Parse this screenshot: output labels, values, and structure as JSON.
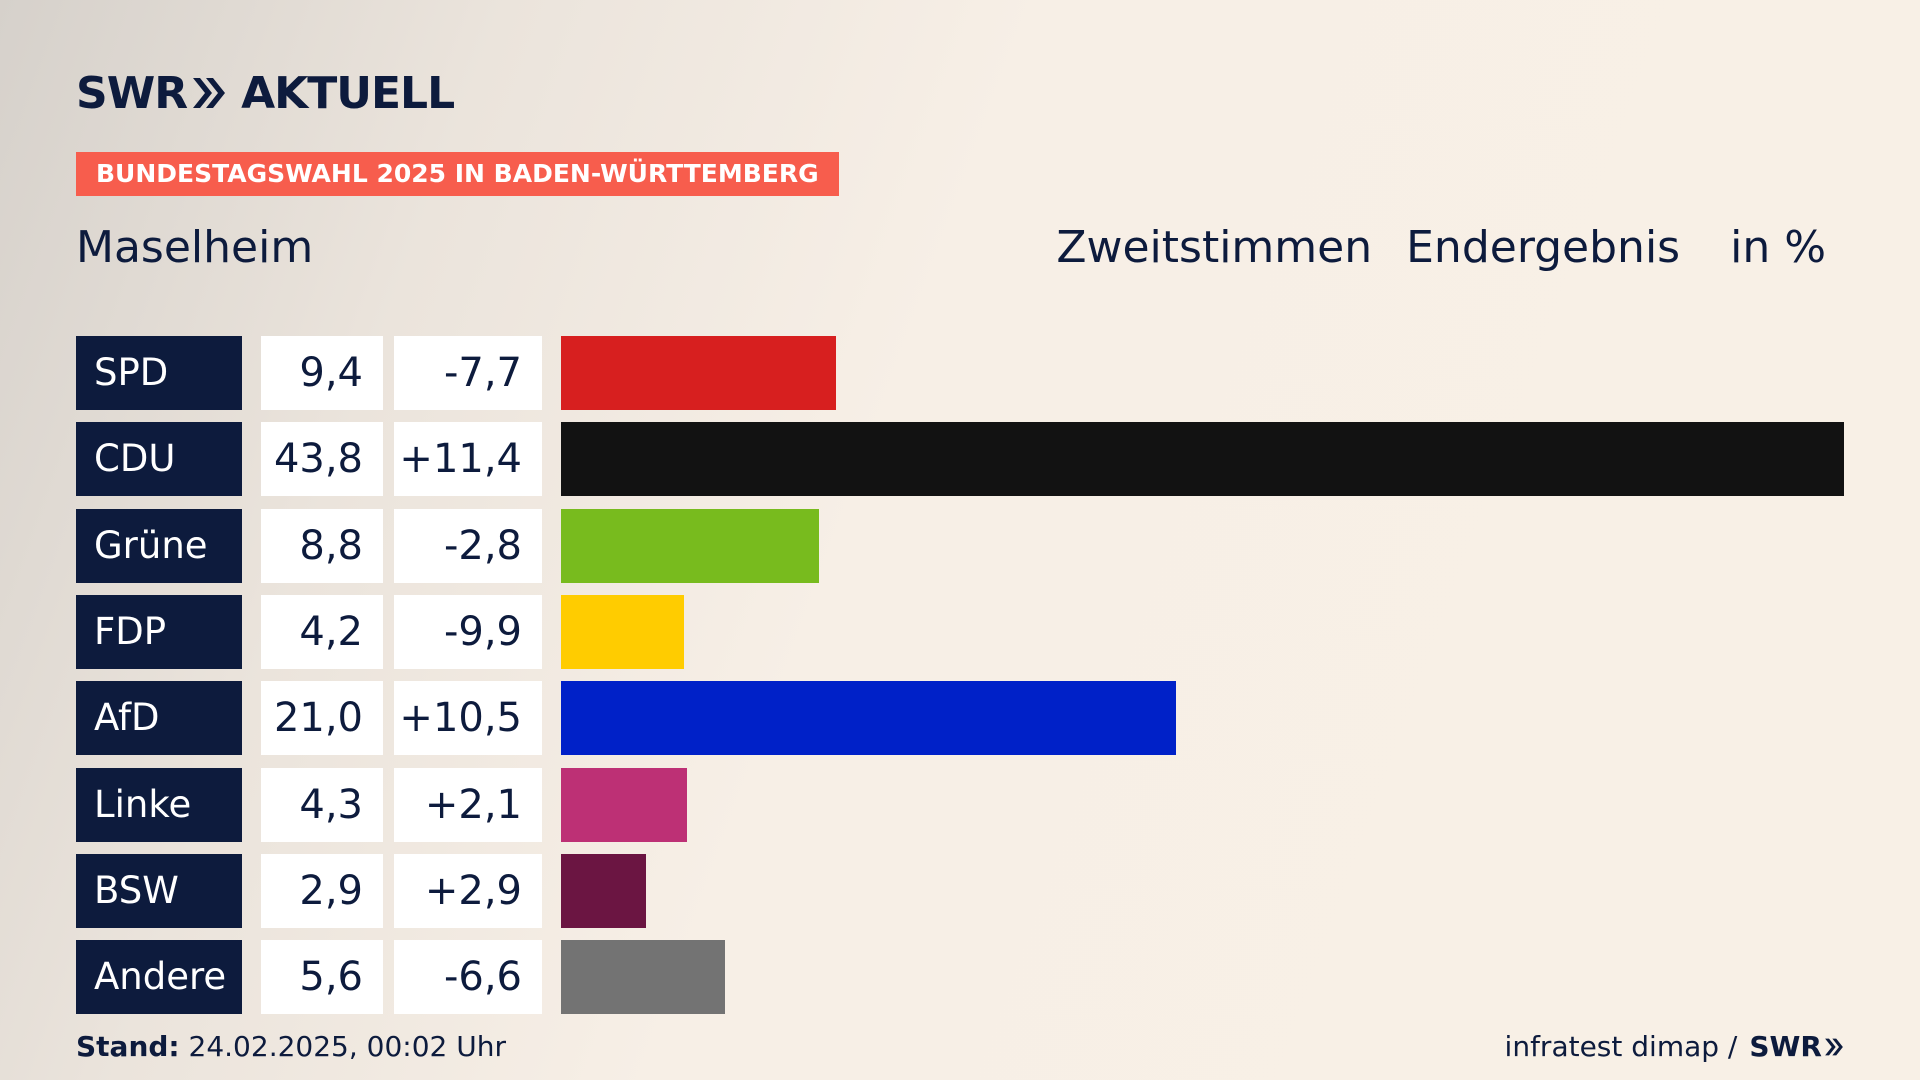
{
  "header": {
    "brand_left": "SWR",
    "brand_right": "AKTUELL",
    "banner": "BUNDESTAGSWAHL 2025 IN BADEN-WÜRTTEMBERG",
    "region": "Maselheim",
    "type": "Zweitstimmen",
    "status": "Endergebnis",
    "unit": "in %"
  },
  "chart_data": {
    "type": "bar",
    "orientation": "horizontal",
    "categories": [
      "SPD",
      "CDU",
      "Grüne",
      "FDP",
      "AfD",
      "Linke",
      "BSW",
      "Andere"
    ],
    "values": [
      9.4,
      43.8,
      8.8,
      4.2,
      21.0,
      4.3,
      2.9,
      5.6
    ],
    "value_labels": [
      "9,4",
      "43,8",
      "8,8",
      "4,2",
      "21,0",
      "4,3",
      "2,9",
      "5,6"
    ],
    "diff_labels": [
      "-7,7",
      "+11,4",
      "-2,8",
      "-9,9",
      "+10,5",
      "+2,1",
      "+2,9",
      "-6,6"
    ],
    "colors": [
      "#d71f1f",
      "#121212",
      "#78bb1e",
      "#ffcc00",
      "#0021c8",
      "#bd3075",
      "#6b1542",
      "#737373"
    ],
    "max_value": 43.8
  },
  "footer": {
    "stand_label": "Stand:",
    "stand_value": "24.02.2025, 00:02 Uhr",
    "source": "infratest dimap /",
    "source_brand": "SWR"
  }
}
